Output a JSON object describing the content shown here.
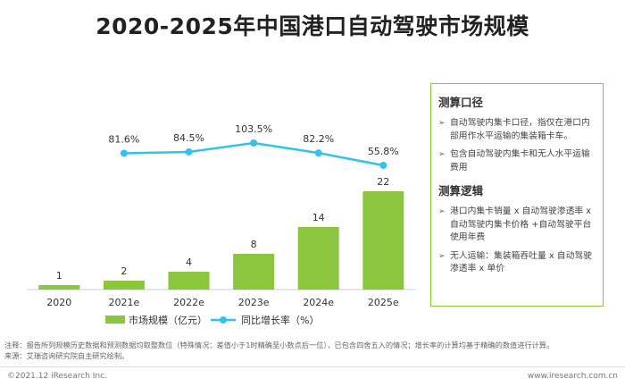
{
  "title": "2020-2025年中国港口自动驾驶市场规模",
  "chart_data": {
    "type": "bar+line",
    "categories": [
      "2020",
      "2021e",
      "2022e",
      "2023e",
      "2024e",
      "2025e"
    ],
    "series": [
      {
        "name": "市场规模（亿元）",
        "type": "bar",
        "values": [
          1,
          2,
          4,
          8,
          14,
          22
        ],
        "color": "#8cc63f"
      },
      {
        "name": "同比增长率（%）",
        "type": "line",
        "values": [
          null,
          81.6,
          84.5,
          103.5,
          82.2,
          55.8
        ],
        "labels": [
          "",
          "81.6%",
          "84.5%",
          "103.5%",
          "82.2%",
          "55.8%"
        ],
        "color": "#33c3e8"
      }
    ],
    "bar_ylim": [
      0,
      22
    ],
    "line_ylim": [
      55.8,
      103.5
    ],
    "legend_position": "bottom"
  },
  "panel": {
    "sections": [
      {
        "heading": "测算口径",
        "items": [
          "自动驾驶内集卡口径，指仅在港口内部用作水平运输的集装箱卡车。",
          "包含自动驾驶内集卡和无人水平运输费用"
        ]
      },
      {
        "heading": "测算逻辑",
        "items": [
          "港口内集卡销量 x 自动驾驶渗透率 x 自动驾驶内集卡价格 +自动驾驶平台使用年费",
          "无人运输：集装箱吞吐量 x 自动驾驶渗透率 x 单价"
        ]
      }
    ],
    "bullet": "➢"
  },
  "notes": {
    "line1": "注释：报告所列规模历史数据和预测数据均取整数位（特殊情况：差值小于1时精确至小数点后一位），已包含四舍五入的情况；增长率的计算均基于精确的数值进行计算。",
    "line2": "来源：艾瑞咨询研究院自主研究绘制。"
  },
  "footer": {
    "copyright": "©2021.12 iResearch Inc.",
    "website": "www.iresearch.com.cn"
  }
}
